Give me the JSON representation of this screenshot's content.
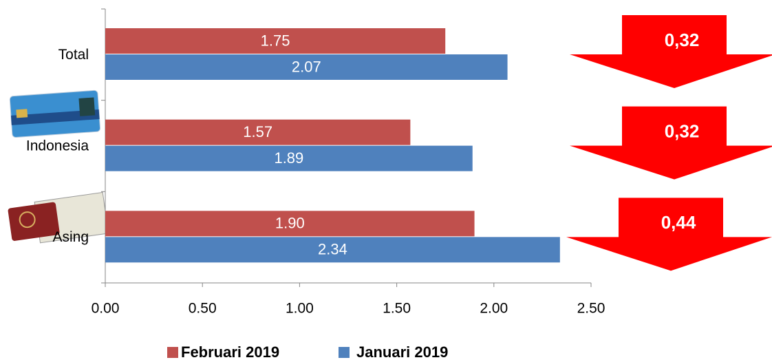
{
  "chart_data": {
    "type": "bar",
    "orientation": "horizontal",
    "categories": [
      "Total",
      "Indonesia",
      "Asing"
    ],
    "series": [
      {
        "name": "Februari 2019",
        "color": "#c0504d",
        "values": [
          1.75,
          1.57,
          1.9
        ],
        "value_labels": [
          "1.75",
          "1.57",
          "1.90"
        ]
      },
      {
        "name": "Januari 2019",
        "color": "#4f81bd",
        "values": [
          2.07,
          1.89,
          2.34
        ],
        "value_labels": [
          "2.07",
          "1.89",
          "2.34"
        ]
      }
    ],
    "xlim": [
      0,
      2.5
    ],
    "xticks": [
      {
        "value": 0,
        "label": "0.00"
      },
      {
        "value": 0.5,
        "label": "0.50"
      },
      {
        "value": 1,
        "label": "1.00"
      },
      {
        "value": 1.5,
        "label": "1.50"
      },
      {
        "value": 2,
        "label": "2.00"
      },
      {
        "value": 2.5,
        "label": "2.50"
      }
    ],
    "annotations": [
      "0,32",
      "0,32",
      "0,44"
    ],
    "annotation_color": "#ff0000",
    "legend": "bottom"
  }
}
